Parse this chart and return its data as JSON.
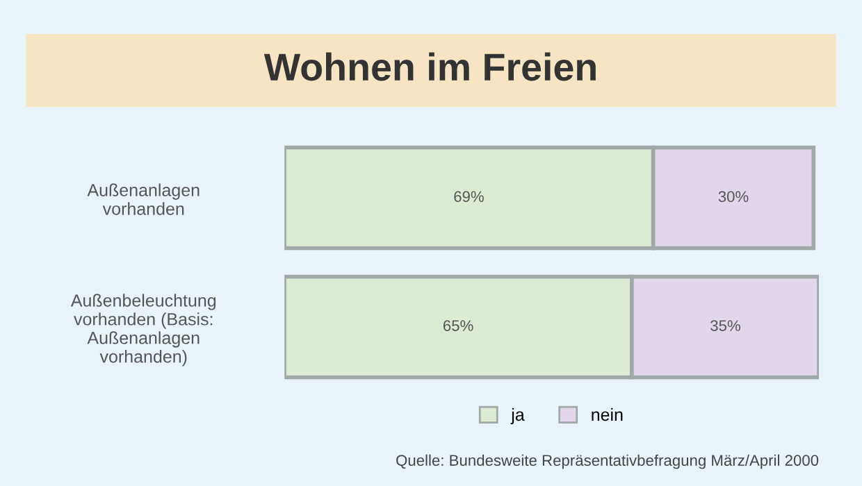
{
  "chart_data": {
    "type": "bar",
    "title": "Wohnen im Freien",
    "orientation": "horizontal",
    "stacked": true,
    "categories": [
      "Außenanlagen\nvorhanden",
      "Außenbeleuchtung\nvorhanden (Basis:\nAußenanlagen\nvorhanden)"
    ],
    "series": [
      {
        "name": "ja",
        "color": "#dcebd3",
        "values": [
          69,
          65
        ],
        "value_labels": [
          "69%",
          "65%"
        ]
      },
      {
        "name": "nein",
        "color": "#e2d6ea",
        "values": [
          30,
          35
        ],
        "value_labels": [
          "30%",
          "35%"
        ]
      }
    ],
    "legend": "bottom",
    "grid": false,
    "annotations": [
      "Quelle: Bundesweite Repräsentativbefragung März/April 2000"
    ]
  }
}
